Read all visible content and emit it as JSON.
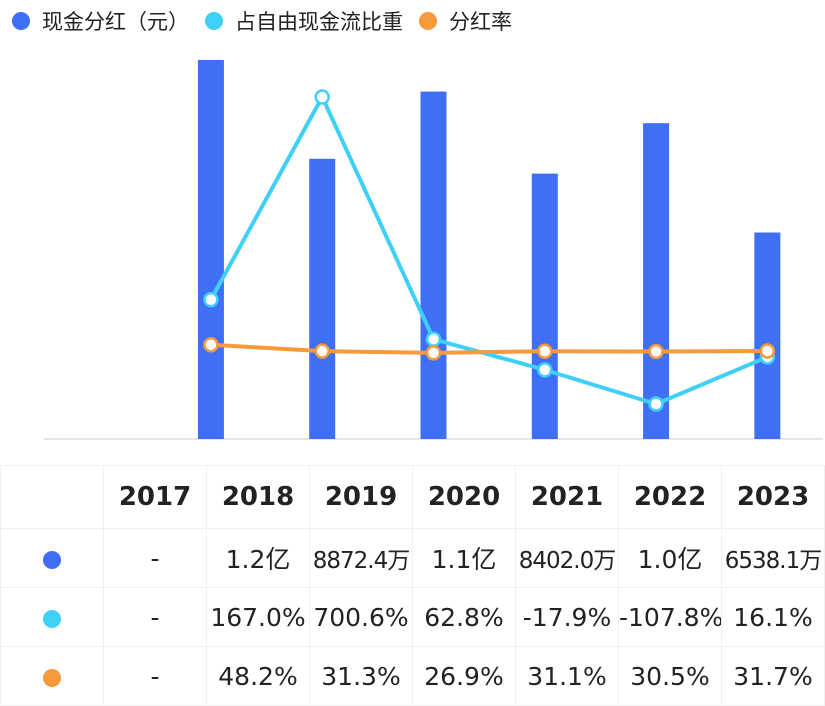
{
  "legend": [
    {
      "label": "现金分红（元）",
      "color": "#3f6ff5"
    },
    {
      "label": "占自由现金流比重",
      "color": "#3fd0f7"
    },
    {
      "label": "分红率",
      "color": "#f79a3b"
    }
  ],
  "chart_data": {
    "type": "bar",
    "categories": [
      "2017",
      "2018",
      "2019",
      "2020",
      "2021",
      "2022",
      "2023"
    ],
    "series": [
      {
        "name": "现金分红（元）",
        "kind": "bar",
        "color": "#3f6ff5",
        "values": [
          null,
          120000000,
          88724000,
          110000000,
          84020000,
          100000000,
          65381000
        ]
      },
      {
        "name": "占自由现金流比重",
        "kind": "line",
        "color": "#3fd0f7",
        "values": [
          null,
          167.0,
          700.6,
          62.8,
          -17.9,
          -107.8,
          16.1
        ]
      },
      {
        "name": "分红率",
        "kind": "line",
        "color": "#f79a3b",
        "values": [
          null,
          48.2,
          31.3,
          26.9,
          31.1,
          30.5,
          31.7
        ]
      }
    ],
    "legend_position": "top-left",
    "grid": false
  },
  "table": {
    "years": [
      "2017",
      "2018",
      "2019",
      "2020",
      "2021",
      "2022",
      "2023"
    ],
    "rows": [
      {
        "color": "#3f6ff5",
        "cells": [
          "-",
          "1.2亿",
          "8872.4万",
          "1.1亿",
          "8402.0万",
          "1.0亿",
          "6538.1万"
        ]
      },
      {
        "color": "#3fd0f7",
        "cells": [
          "-",
          "167.0%",
          "700.6%",
          "62.8%",
          "-17.9%",
          "-107.8%",
          "16.1%"
        ]
      },
      {
        "color": "#f79a3b",
        "cells": [
          "-",
          "48.2%",
          "31.3%",
          "26.9%",
          "31.1%",
          "30.5%",
          "31.7%"
        ]
      }
    ]
  }
}
